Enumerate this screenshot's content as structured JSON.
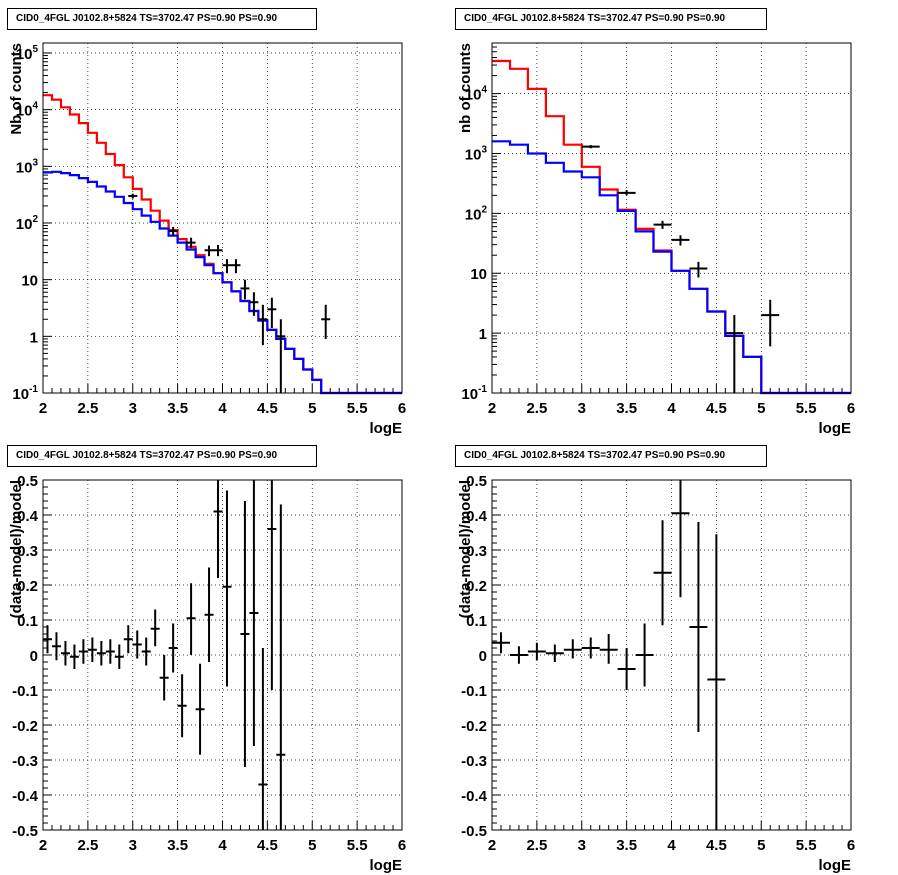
{
  "chart_data": [
    {
      "type": "line",
      "title": "CID0_4FGL J0102.8+5824 TS=3702.47 PS=0.90 PS=0.90",
      "xlabel": "logE",
      "ylabel": "Nb of counts",
      "xlim": [
        2,
        6
      ],
      "ylim": [
        0.1,
        150000
      ],
      "yscale": "log",
      "grid": true,
      "x_ticks": [
        "2",
        "2.5",
        "3",
        "3.5",
        "4",
        "4.5",
        "5",
        "5.5",
        "6"
      ],
      "y_ticks": [
        "10^-1",
        "1",
        "10",
        "10^2",
        "10^3",
        "10^4",
        "10^5"
      ],
      "bin_edges": [
        2.0,
        2.1,
        2.2,
        2.3,
        2.4,
        2.5,
        2.6,
        2.7,
        2.8,
        2.9,
        3.0,
        3.1,
        3.2,
        3.3,
        3.4,
        3.5,
        3.6,
        3.7,
        3.8,
        3.9,
        4.0,
        4.1,
        4.2,
        4.3,
        4.4,
        4.5,
        4.6,
        4.7,
        4.8,
        4.9,
        5.0,
        5.1,
        5.2,
        5.3,
        5.4,
        5.5,
        5.6,
        5.7,
        5.8,
        5.9,
        6.0
      ],
      "series": [
        {
          "color": "#ff0000",
          "values": [
            18000,
            15000,
            11000,
            8200,
            5800,
            3900,
            2600,
            1650,
            1050,
            640,
            400,
            260,
            165,
            110,
            75,
            52,
            38,
            27,
            19,
            13,
            9,
            6.2,
            4.2,
            2.8,
            1.9,
            1.3,
            0.9,
            0.6,
            0.4,
            0.26,
            0.17,
            0.1,
            0.1,
            0.1,
            0.1,
            0.1,
            0.1,
            0.1,
            0.1,
            0.1
          ]
        },
        {
          "color": "#0000ff",
          "values": [
            780,
            800,
            760,
            700,
            620,
            530,
            440,
            360,
            290,
            225,
            175,
            135,
            105,
            80,
            60,
            45,
            34,
            25,
            18,
            13,
            9,
            6.2,
            4.2,
            2.8,
            1.9,
            1.3,
            0.9,
            0.6,
            0.4,
            0.26,
            0.17,
            0.1,
            0.1,
            0.1,
            0.1,
            0.1,
            0.1,
            0.1,
            0.1,
            0.1
          ]
        }
      ],
      "points": [
        {
          "x": 3.0,
          "y": 300,
          "xerr": 0.05,
          "ylo": 270,
          "yhi": 330
        },
        {
          "x": 3.45,
          "y": 72,
          "xerr": 0.05,
          "ylo": 60,
          "yhi": 85
        },
        {
          "x": 3.65,
          "y": 45,
          "xerr": 0.05,
          "ylo": 36,
          "yhi": 55
        },
        {
          "x": 3.85,
          "y": 33,
          "xerr": 0.05,
          "ylo": 26,
          "yhi": 40
        },
        {
          "x": 3.95,
          "y": 33,
          "xerr": 0.05,
          "ylo": 26,
          "yhi": 41
        },
        {
          "x": 4.05,
          "y": 18,
          "xerr": 0.05,
          "ylo": 13,
          "yhi": 23
        },
        {
          "x": 4.15,
          "y": 18,
          "xerr": 0.05,
          "ylo": 13,
          "yhi": 23
        },
        {
          "x": 4.25,
          "y": 7,
          "xerr": 0.05,
          "ylo": 4.5,
          "yhi": 10
        },
        {
          "x": 4.35,
          "y": 4,
          "xerr": 0.05,
          "ylo": 2.3,
          "yhi": 6
        },
        {
          "x": 4.45,
          "y": 2,
          "xerr": 0.05,
          "ylo": 0.7,
          "yhi": 3.6
        },
        {
          "x": 4.55,
          "y": 3,
          "xerr": 0.05,
          "ylo": 1.4,
          "yhi": 4.8
        },
        {
          "x": 4.65,
          "y": 1,
          "xerr": 0.05,
          "ylo": 0.1,
          "yhi": 2.0
        },
        {
          "x": 5.15,
          "y": 2,
          "xerr": 0.05,
          "ylo": 0.9,
          "yhi": 3.6
        }
      ]
    },
    {
      "type": "line",
      "title": "CID0_4FGL J0102.8+5824 TS=3702.47 PS=0.90 PS=0.90",
      "xlabel": "logE",
      "ylabel": "nb of counts",
      "xlim": [
        2,
        6
      ],
      "ylim": [
        0.1,
        70000
      ],
      "yscale": "log",
      "grid": true,
      "x_ticks": [
        "2",
        "2.5",
        "3",
        "3.5",
        "4",
        "4.5",
        "5",
        "5.5",
        "6"
      ],
      "y_ticks": [
        "10^-1",
        "1",
        "10",
        "10^2",
        "10^3",
        "10^4"
      ],
      "bin_edges": [
        2.0,
        2.2,
        2.4,
        2.6,
        2.8,
        3.0,
        3.2,
        3.4,
        3.6,
        3.8,
        4.0,
        4.2,
        4.4,
        4.6,
        4.8,
        5.0,
        5.2,
        5.4,
        5.6,
        5.8,
        6.0
      ],
      "series": [
        {
          "color": "#ff0000",
          "values": [
            35000,
            26000,
            12000,
            4200,
            1400,
            600,
            250,
            115,
            55,
            24,
            11,
            5.5,
            2.3,
            0.9,
            0.4,
            0.1,
            0.1,
            0.1,
            0.1,
            0.1
          ]
        },
        {
          "color": "#0000ff",
          "values": [
            1600,
            1400,
            1000,
            700,
            500,
            400,
            200,
            110,
            50,
            23,
            11,
            5.5,
            2.3,
            0.9,
            0.4,
            0.1,
            0.1,
            0.1,
            0.1,
            0.1
          ]
        }
      ],
      "points": [
        {
          "x": 3.1,
          "y": 1300,
          "xerr": 0.1,
          "ylo": 1220,
          "yhi": 1380
        },
        {
          "x": 3.5,
          "y": 220,
          "xerr": 0.1,
          "ylo": 200,
          "yhi": 245
        },
        {
          "x": 3.9,
          "y": 65,
          "xerr": 0.1,
          "ylo": 55,
          "yhi": 75
        },
        {
          "x": 4.1,
          "y": 36,
          "xerr": 0.1,
          "ylo": 29,
          "yhi": 43
        },
        {
          "x": 4.3,
          "y": 12,
          "xerr": 0.1,
          "ylo": 8.5,
          "yhi": 15.5
        },
        {
          "x": 4.7,
          "y": 1,
          "xerr": 0.1,
          "ylo": 0.1,
          "yhi": 2.0
        },
        {
          "x": 5.1,
          "y": 2,
          "xerr": 0.1,
          "ylo": 0.6,
          "yhi": 3.6
        }
      ]
    },
    {
      "type": "scatter",
      "title": "CID0_4FGL J0102.8+5824 TS=3702.47 PS=0.90 PS=0.90",
      "xlabel": "logE",
      "ylabel": "(data-model)/model",
      "xlim": [
        2,
        6
      ],
      "ylim": [
        -0.5,
        0.5
      ],
      "grid": true,
      "x_ticks": [
        "2",
        "2.5",
        "3",
        "3.5",
        "4",
        "4.5",
        "5",
        "5.5",
        "6"
      ],
      "y_ticks": [
        "-0.5",
        "-0.4",
        "-0.3",
        "-0.2",
        "-0.1",
        "0",
        "0.1",
        "0.2",
        "0.3",
        "0.4",
        "0.5"
      ],
      "points": [
        {
          "x": 2.05,
          "y": 0.045,
          "xerr": 0.05,
          "ylo": 0.005,
          "yhi": 0.085
        },
        {
          "x": 2.15,
          "y": 0.025,
          "xerr": 0.05,
          "ylo": -0.015,
          "yhi": 0.065
        },
        {
          "x": 2.25,
          "y": 0.005,
          "xerr": 0.05,
          "ylo": -0.03,
          "yhi": 0.04
        },
        {
          "x": 2.35,
          "y": -0.005,
          "xerr": 0.05,
          "ylo": -0.04,
          "yhi": 0.03
        },
        {
          "x": 2.45,
          "y": 0.01,
          "xerr": 0.05,
          "ylo": -0.025,
          "yhi": 0.045
        },
        {
          "x": 2.55,
          "y": 0.015,
          "xerr": 0.05,
          "ylo": -0.02,
          "yhi": 0.05
        },
        {
          "x": 2.65,
          "y": 0.005,
          "xerr": 0.05,
          "ylo": -0.03,
          "yhi": 0.04
        },
        {
          "x": 2.75,
          "y": 0.01,
          "xerr": 0.05,
          "ylo": -0.025,
          "yhi": 0.045
        },
        {
          "x": 2.85,
          "y": -0.005,
          "xerr": 0.05,
          "ylo": -0.04,
          "yhi": 0.03
        },
        {
          "x": 2.95,
          "y": 0.045,
          "xerr": 0.05,
          "ylo": 0.005,
          "yhi": 0.085
        },
        {
          "x": 3.05,
          "y": 0.03,
          "xerr": 0.05,
          "ylo": -0.01,
          "yhi": 0.07
        },
        {
          "x": 3.15,
          "y": 0.01,
          "xerr": 0.05,
          "ylo": -0.03,
          "yhi": 0.05
        },
        {
          "x": 3.25,
          "y": 0.075,
          "xerr": 0.05,
          "ylo": 0.025,
          "yhi": 0.13
        },
        {
          "x": 3.35,
          "y": -0.065,
          "xerr": 0.05,
          "ylo": -0.13,
          "yhi": 0.0
        },
        {
          "x": 3.45,
          "y": 0.02,
          "xerr": 0.05,
          "ylo": -0.05,
          "yhi": 0.09
        },
        {
          "x": 3.55,
          "y": -0.145,
          "xerr": 0.05,
          "ylo": -0.235,
          "yhi": -0.055
        },
        {
          "x": 3.65,
          "y": 0.105,
          "xerr": 0.05,
          "ylo": 0.0,
          "yhi": 0.205
        },
        {
          "x": 3.75,
          "y": -0.155,
          "xerr": 0.05,
          "ylo": -0.285,
          "yhi": -0.025
        },
        {
          "x": 3.85,
          "y": 0.115,
          "xerr": 0.05,
          "ylo": -0.02,
          "yhi": 0.25
        },
        {
          "x": 3.95,
          "y": 0.41,
          "xerr": 0.05,
          "ylo": 0.22,
          "yhi": 0.5
        },
        {
          "x": 4.05,
          "y": 0.195,
          "xerr": 0.05,
          "ylo": -0.09,
          "yhi": 0.47
        },
        {
          "x": 4.25,
          "y": 0.06,
          "xerr": 0.05,
          "ylo": -0.32,
          "yhi": 0.44
        },
        {
          "x": 4.35,
          "y": 0.12,
          "xerr": 0.05,
          "ylo": -0.26,
          "yhi": 0.5
        },
        {
          "x": 4.45,
          "y": -0.37,
          "xerr": 0.05,
          "ylo": -0.5,
          "yhi": 0.02
        },
        {
          "x": 4.55,
          "y": 0.36,
          "xerr": 0.05,
          "ylo": -0.1,
          "yhi": 0.5
        },
        {
          "x": 4.65,
          "y": -0.285,
          "xerr": 0.05,
          "ylo": -0.5,
          "yhi": 0.43
        }
      ]
    },
    {
      "type": "scatter",
      "title": "CID0_4FGL J0102.8+5824 TS=3702.47 PS=0.90 PS=0.90",
      "xlabel": "logE",
      "ylabel": "(data-model)/model",
      "xlim": [
        2,
        6
      ],
      "ylim": [
        -0.5,
        0.5
      ],
      "grid": true,
      "x_ticks": [
        "2",
        "2.5",
        "3",
        "3.5",
        "4",
        "4.5",
        "5",
        "5.5",
        "6"
      ],
      "y_ticks": [
        "-0.5",
        "-0.4",
        "-0.3",
        "-0.2",
        "-0.1",
        "0",
        "0.1",
        "0.2",
        "0.3",
        "0.4",
        "0.5"
      ],
      "points": [
        {
          "x": 2.1,
          "y": 0.035,
          "xerr": 0.1,
          "ylo": 0.005,
          "yhi": 0.065
        },
        {
          "x": 2.3,
          "y": 0.0,
          "xerr": 0.1,
          "ylo": -0.025,
          "yhi": 0.025
        },
        {
          "x": 2.5,
          "y": 0.01,
          "xerr": 0.1,
          "ylo": -0.015,
          "yhi": 0.035
        },
        {
          "x": 2.7,
          "y": 0.005,
          "xerr": 0.1,
          "ylo": -0.02,
          "yhi": 0.03
        },
        {
          "x": 2.9,
          "y": 0.015,
          "xerr": 0.1,
          "ylo": -0.01,
          "yhi": 0.045
        },
        {
          "x": 3.1,
          "y": 0.02,
          "xerr": 0.1,
          "ylo": -0.01,
          "yhi": 0.05
        },
        {
          "x": 3.3,
          "y": 0.015,
          "xerr": 0.1,
          "ylo": -0.025,
          "yhi": 0.06
        },
        {
          "x": 3.5,
          "y": -0.04,
          "xerr": 0.1,
          "ylo": -0.1,
          "yhi": 0.02
        },
        {
          "x": 3.7,
          "y": 0.0,
          "xerr": 0.1,
          "ylo": -0.09,
          "yhi": 0.09
        },
        {
          "x": 3.9,
          "y": 0.235,
          "xerr": 0.1,
          "ylo": 0.085,
          "yhi": 0.385
        },
        {
          "x": 4.1,
          "y": 0.405,
          "xerr": 0.1,
          "ylo": 0.165,
          "yhi": 0.5
        },
        {
          "x": 4.3,
          "y": 0.08,
          "xerr": 0.1,
          "ylo": -0.22,
          "yhi": 0.38
        },
        {
          "x": 4.5,
          "y": -0.07,
          "xerr": 0.1,
          "ylo": -0.5,
          "yhi": 0.345
        }
      ]
    }
  ]
}
